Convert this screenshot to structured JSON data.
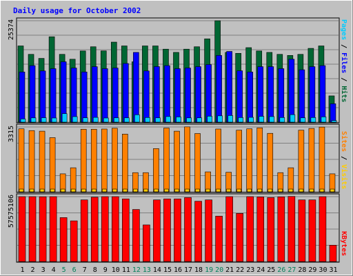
{
  "chart_data": [
    {
      "type": "bar",
      "title": "Daily usage for October 2002",
      "categories": [
        "1",
        "2",
        "3",
        "4",
        "5",
        "6",
        "7",
        "8",
        "9",
        "10",
        "11",
        "12",
        "13",
        "14",
        "15",
        "16",
        "17",
        "18",
        "19",
        "20",
        "21",
        "22",
        "23",
        "24",
        "25",
        "26",
        "27",
        "28",
        "29",
        "30",
        "31"
      ],
      "weekend_days": [
        "5",
        "6",
        "12",
        "13",
        "19",
        "20",
        "26",
        "27"
      ],
      "y_max_label": "25374",
      "ylim": [
        0,
        25374
      ],
      "grid": true,
      "series": [
        {
          "name": "Hits",
          "color": "#006633",
          "values": [
            19070,
            16960,
            15950,
            21360,
            16960,
            15740,
            17810,
            18860,
            17830,
            20020,
            19070,
            15100,
            19070,
            19070,
            18260,
            17450,
            18260,
            18860,
            20840,
            25370,
            17450,
            17210,
            18640,
            17810,
            17450,
            16960,
            16690,
            16960,
            18460,
            19070,
            6570
          ]
        },
        {
          "name": "Files",
          "color": "#0000ff",
          "values": [
            12550,
            14140,
            12810,
            13380,
            15100,
            13540,
            12550,
            13880,
            13380,
            13540,
            14670,
            17450,
            12810,
            13900,
            14140,
            13380,
            13540,
            13880,
            14400,
            16690,
            17690,
            12850,
            12550,
            13880,
            13880,
            13380,
            15740,
            13100,
            13880,
            14140,
            4600
          ]
        },
        {
          "name": "Pages",
          "color": "#00ccff",
          "values": [
            800,
            1070,
            1100,
            1040,
            2120,
            1380,
            1080,
            1190,
            1040,
            1080,
            1080,
            1850,
            1150,
            1080,
            1400,
            1300,
            1070,
            1080,
            1480,
            1580,
            1650,
            1150,
            1200,
            1450,
            1390,
            1150,
            1880,
            1080,
            1150,
            1320,
            400
          ]
        }
      ]
    },
    {
      "type": "bar",
      "y_max_label": "3315",
      "ylim": [
        0,
        3315
      ],
      "grid": true,
      "series": [
        {
          "name": "Visits",
          "color": "#ffcc00",
          "values": [
            140,
            140,
            140,
            140,
            140,
            140,
            140,
            140,
            140,
            140,
            140,
            140,
            140,
            140,
            140,
            140,
            140,
            140,
            140,
            140,
            140,
            140,
            140,
            140,
            140,
            140,
            140,
            140,
            140,
            140,
            140
          ]
        },
        {
          "name": "Sites",
          "color": "#ff8000",
          "values": [
            3220,
            3130,
            3100,
            2770,
            920,
            1230,
            3200,
            3200,
            3210,
            3250,
            2950,
            980,
            980,
            2210,
            3260,
            3100,
            3320,
            2980,
            1020,
            3210,
            1000,
            3150,
            3220,
            3270,
            2990,
            980,
            1230,
            3150,
            3240,
            3310,
            920
          ]
        }
      ]
    },
    {
      "type": "bar",
      "y_max_label": "57575106",
      "ylim": [
        0,
        57575106
      ],
      "grid": true,
      "series": [
        {
          "name": "KBytes",
          "color": "#ff0000",
          "values": [
            57570000,
            57570000,
            57500000,
            57570000,
            39000000,
            36100000,
            54700000,
            57100000,
            57570000,
            57570000,
            55600000,
            46200000,
            32500000,
            54700000,
            55600000,
            55600000,
            56800000,
            53500000,
            54700000,
            40300000,
            57570000,
            42700000,
            57570000,
            57300000,
            56800000,
            57400000,
            57800000,
            54700000,
            54700000,
            57570000,
            14500000
          ]
        }
      ]
    }
  ]
}
